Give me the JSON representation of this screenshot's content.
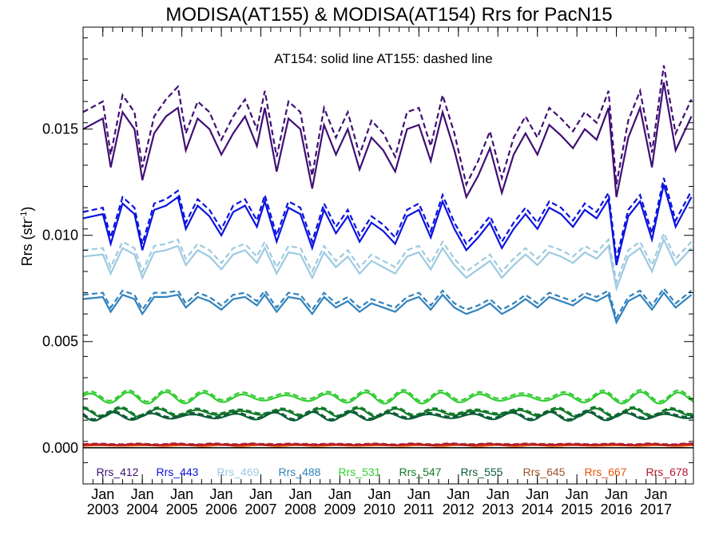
{
  "chart_data": {
    "type": "line",
    "title": "MODISA(AT155) & MODISA(AT154)  Rrs for PacN15",
    "ylabel": "Rrs (str",
    "ylabel_sup": "-1",
    "ylabel_close": ")",
    "note": "AT154: solid line   AT155: dashed line",
    "ylim": [
      -0.0017,
      0.0198
    ],
    "xlim": [
      2002.5,
      2017.95
    ],
    "y_ticks": [
      0.0,
      0.005,
      0.01,
      0.015
    ],
    "y_tick_labels": [
      "0.000",
      "0.005",
      "0.010",
      "0.015"
    ],
    "x_ticks": [
      {
        "top": "Jan",
        "bottom": "2003",
        "x": 2003.0
      },
      {
        "top": "Jan",
        "bottom": "2004",
        "x": 2004.0
      },
      {
        "top": "Jan",
        "bottom": "2005",
        "x": 2005.0
      },
      {
        "top": "Jan",
        "bottom": "2006",
        "x": 2006.0
      },
      {
        "top": "Jan",
        "bottom": "2007",
        "x": 2007.0
      },
      {
        "top": "Jan",
        "bottom": "2008",
        "x": 2008.0
      },
      {
        "top": "Jan",
        "bottom": "2009",
        "x": 2009.0
      },
      {
        "top": "Jan",
        "bottom": "2010",
        "x": 2010.0
      },
      {
        "top": "Jan",
        "bottom": "2011",
        "x": 2011.0
      },
      {
        "top": "Jan",
        "bottom": "2012",
        "x": 2012.0
      },
      {
        "top": "Jan",
        "bottom": "2013",
        "x": 2013.0
      },
      {
        "top": "Jan",
        "bottom": "2014",
        "x": 2014.0
      },
      {
        "top": "Jan",
        "bottom": "2015",
        "x": 2015.0
      },
      {
        "top": "Jan",
        "bottom": "2016",
        "x": 2016.0
      },
      {
        "top": "Jan",
        "bottom": "2017",
        "x": 2017.0
      }
    ],
    "series": [
      {
        "name": "Rrs_412",
        "color": "#3f0f74",
        "x": [
          2002.5,
          2003.0,
          2003.2,
          2003.5,
          2003.8,
          2004.0,
          2004.3,
          2004.6,
          2004.9,
          2005.1,
          2005.4,
          2005.7,
          2006.0,
          2006.3,
          2006.6,
          2006.9,
          2007.1,
          2007.4,
          2007.7,
          2008.0,
          2008.3,
          2008.6,
          2008.9,
          2009.2,
          2009.5,
          2009.8,
          2010.1,
          2010.4,
          2010.7,
          2011.0,
          2011.3,
          2011.6,
          2011.9,
          2012.2,
          2012.5,
          2012.8,
          2013.1,
          2013.4,
          2013.7,
          2014.0,
          2014.3,
          2014.6,
          2014.9,
          2015.2,
          2015.5,
          2015.8,
          2016.0,
          2016.3,
          2016.6,
          2016.9,
          2017.2,
          2017.5,
          2017.9
        ],
        "solid": [
          0.015,
          0.0155,
          0.0132,
          0.0158,
          0.015,
          0.0126,
          0.0148,
          0.0156,
          0.016,
          0.014,
          0.0155,
          0.015,
          0.0138,
          0.0148,
          0.0156,
          0.0142,
          0.016,
          0.013,
          0.0155,
          0.015,
          0.0122,
          0.0152,
          0.0138,
          0.015,
          0.0131,
          0.0146,
          0.014,
          0.013,
          0.015,
          0.0152,
          0.0135,
          0.0158,
          0.014,
          0.0118,
          0.0128,
          0.0141,
          0.012,
          0.0138,
          0.0148,
          0.0138,
          0.0152,
          0.0147,
          0.0141,
          0.015,
          0.0145,
          0.016,
          0.0118,
          0.0146,
          0.016,
          0.0132,
          0.0172,
          0.014,
          0.0156
        ],
        "dashed": [
          0.0158,
          0.0163,
          0.0138,
          0.0166,
          0.0158,
          0.0132,
          0.0156,
          0.0164,
          0.017,
          0.0148,
          0.0163,
          0.0158,
          0.0145,
          0.0156,
          0.0164,
          0.015,
          0.0168,
          0.0137,
          0.0163,
          0.0158,
          0.0128,
          0.016,
          0.0146,
          0.0158,
          0.0138,
          0.0154,
          0.0148,
          0.0137,
          0.0158,
          0.016,
          0.0142,
          0.0166,
          0.0148,
          0.0124,
          0.0135,
          0.0149,
          0.0127,
          0.0146,
          0.0156,
          0.0146,
          0.016,
          0.0155,
          0.0149,
          0.0158,
          0.0153,
          0.0168,
          0.0124,
          0.0154,
          0.0168,
          0.0139,
          0.018,
          0.0148,
          0.0164
        ]
      },
      {
        "name": "Rrs_443",
        "color": "#0b12e0",
        "x": [
          2002.5,
          2003.0,
          2003.2,
          2003.5,
          2003.8,
          2004.0,
          2004.3,
          2004.6,
          2004.9,
          2005.1,
          2005.4,
          2005.7,
          2006.0,
          2006.3,
          2006.6,
          2006.9,
          2007.1,
          2007.4,
          2007.7,
          2008.0,
          2008.3,
          2008.6,
          2008.9,
          2009.2,
          2009.5,
          2009.8,
          2010.1,
          2010.4,
          2010.7,
          2011.0,
          2011.3,
          2011.6,
          2011.9,
          2012.2,
          2012.5,
          2012.8,
          2013.1,
          2013.4,
          2013.7,
          2014.0,
          2014.3,
          2014.6,
          2014.9,
          2015.2,
          2015.5,
          2015.8,
          2016.0,
          2016.3,
          2016.6,
          2016.9,
          2017.2,
          2017.5,
          2017.9
        ],
        "solid": [
          0.0108,
          0.011,
          0.0096,
          0.0115,
          0.011,
          0.0093,
          0.0112,
          0.0114,
          0.0118,
          0.0103,
          0.0114,
          0.0109,
          0.01,
          0.0111,
          0.0114,
          0.0104,
          0.0116,
          0.0097,
          0.0113,
          0.011,
          0.0094,
          0.0112,
          0.0101,
          0.0109,
          0.0097,
          0.0106,
          0.0102,
          0.0096,
          0.0109,
          0.0112,
          0.0099,
          0.0116,
          0.0103,
          0.0093,
          0.0099,
          0.0106,
          0.0094,
          0.0103,
          0.011,
          0.0103,
          0.0113,
          0.011,
          0.0104,
          0.0112,
          0.0108,
          0.0117,
          0.0086,
          0.0109,
          0.0116,
          0.0098,
          0.0124,
          0.0104,
          0.0118
        ],
        "dashed": [
          0.0111,
          0.0113,
          0.0099,
          0.0118,
          0.0113,
          0.0096,
          0.0115,
          0.0117,
          0.0121,
          0.0106,
          0.0117,
          0.0112,
          0.0103,
          0.0114,
          0.0117,
          0.0107,
          0.0119,
          0.01,
          0.0116,
          0.0113,
          0.0097,
          0.0115,
          0.0104,
          0.0112,
          0.01,
          0.0109,
          0.0105,
          0.0099,
          0.0112,
          0.0115,
          0.0102,
          0.0119,
          0.0106,
          0.0096,
          0.0102,
          0.0109,
          0.0097,
          0.0106,
          0.0113,
          0.0106,
          0.0116,
          0.0113,
          0.0107,
          0.0115,
          0.0111,
          0.012,
          0.0089,
          0.0112,
          0.0119,
          0.0101,
          0.0127,
          0.0107,
          0.0121
        ]
      },
      {
        "name": "Rrs_469",
        "color": "#9ecae1",
        "x": [
          2002.5,
          2003.0,
          2003.2,
          2003.5,
          2003.8,
          2004.0,
          2004.3,
          2004.6,
          2004.9,
          2005.1,
          2005.4,
          2005.7,
          2006.0,
          2006.3,
          2006.6,
          2006.9,
          2007.1,
          2007.4,
          2007.7,
          2008.0,
          2008.3,
          2008.6,
          2008.9,
          2009.2,
          2009.5,
          2009.8,
          2010.1,
          2010.4,
          2010.7,
          2011.0,
          2011.3,
          2011.6,
          2011.9,
          2012.2,
          2012.5,
          2012.8,
          2013.1,
          2013.4,
          2013.7,
          2014.0,
          2014.3,
          2014.6,
          2014.9,
          2015.2,
          2015.5,
          2015.8,
          2016.0,
          2016.3,
          2016.6,
          2016.9,
          2017.2,
          2017.5,
          2017.9
        ],
        "solid": [
          0.009,
          0.0091,
          0.0082,
          0.0094,
          0.0091,
          0.008,
          0.0092,
          0.0093,
          0.0095,
          0.0086,
          0.0093,
          0.009,
          0.0084,
          0.0091,
          0.0093,
          0.0087,
          0.0094,
          0.0082,
          0.0092,
          0.0091,
          0.008,
          0.0092,
          0.0085,
          0.009,
          0.0082,
          0.0088,
          0.0085,
          0.0082,
          0.009,
          0.0092,
          0.0084,
          0.0094,
          0.0086,
          0.008,
          0.0084,
          0.0088,
          0.008,
          0.0086,
          0.0091,
          0.0086,
          0.0092,
          0.009,
          0.0087,
          0.0092,
          0.0089,
          0.0095,
          0.0075,
          0.009,
          0.0094,
          0.0083,
          0.0098,
          0.0086,
          0.0094
        ],
        "dashed": [
          0.0093,
          0.0094,
          0.0085,
          0.0097,
          0.0094,
          0.0083,
          0.0095,
          0.0096,
          0.0098,
          0.0089,
          0.0096,
          0.0093,
          0.0087,
          0.0094,
          0.0096,
          0.009,
          0.0097,
          0.0085,
          0.0095,
          0.0094,
          0.0083,
          0.0095,
          0.0088,
          0.0093,
          0.0085,
          0.0091,
          0.0088,
          0.0085,
          0.0093,
          0.0095,
          0.0087,
          0.0097,
          0.0089,
          0.0083,
          0.0087,
          0.0091,
          0.0083,
          0.0089,
          0.0094,
          0.0089,
          0.0095,
          0.0093,
          0.009,
          0.0095,
          0.0092,
          0.0098,
          0.0078,
          0.0093,
          0.0097,
          0.0086,
          0.0101,
          0.0089,
          0.0097
        ]
      },
      {
        "name": "Rrs_488",
        "color": "#3182bd",
        "x": [
          2002.5,
          2003.0,
          2003.2,
          2003.5,
          2003.8,
          2004.0,
          2004.3,
          2004.6,
          2004.9,
          2005.1,
          2005.4,
          2005.7,
          2006.0,
          2006.3,
          2006.6,
          2006.9,
          2007.1,
          2007.4,
          2007.7,
          2008.0,
          2008.3,
          2008.6,
          2008.9,
          2009.2,
          2009.5,
          2009.8,
          2010.1,
          2010.4,
          2010.7,
          2011.0,
          2011.3,
          2011.6,
          2011.9,
          2012.2,
          2012.5,
          2012.8,
          2013.1,
          2013.4,
          2013.7,
          2014.0,
          2014.3,
          2014.6,
          2014.9,
          2015.2,
          2015.5,
          2015.8,
          2016.0,
          2016.3,
          2016.6,
          2016.9,
          2017.2,
          2017.5,
          2017.9
        ],
        "solid": [
          0.007,
          0.0071,
          0.0064,
          0.0072,
          0.007,
          0.0063,
          0.0071,
          0.0071,
          0.0072,
          0.0066,
          0.0071,
          0.0069,
          0.0065,
          0.007,
          0.0071,
          0.0067,
          0.0072,
          0.0064,
          0.0071,
          0.007,
          0.0063,
          0.0071,
          0.0066,
          0.0069,
          0.0064,
          0.0068,
          0.0066,
          0.0064,
          0.0069,
          0.0071,
          0.0065,
          0.0072,
          0.0066,
          0.0063,
          0.0065,
          0.0068,
          0.0063,
          0.0066,
          0.007,
          0.0066,
          0.0071,
          0.0069,
          0.0067,
          0.0071,
          0.0069,
          0.0072,
          0.0059,
          0.0069,
          0.0072,
          0.0065,
          0.0073,
          0.0066,
          0.0072
        ],
        "dashed": [
          0.0072,
          0.0073,
          0.0066,
          0.0074,
          0.0072,
          0.0065,
          0.0073,
          0.0073,
          0.0074,
          0.0068,
          0.0073,
          0.0071,
          0.0067,
          0.0072,
          0.0073,
          0.0069,
          0.0074,
          0.0066,
          0.0073,
          0.0072,
          0.0065,
          0.0073,
          0.0068,
          0.0071,
          0.0066,
          0.007,
          0.0068,
          0.0066,
          0.0071,
          0.0073,
          0.0067,
          0.0074,
          0.0068,
          0.0065,
          0.0067,
          0.007,
          0.0065,
          0.0068,
          0.0072,
          0.0068,
          0.0073,
          0.0071,
          0.0069,
          0.0073,
          0.0071,
          0.0074,
          0.0061,
          0.0071,
          0.0074,
          0.0067,
          0.0075,
          0.0068,
          0.0074
        ]
      },
      {
        "name": "Rrs_531",
        "color": "#32cd32",
        "flat": {
          "solid": 0.00235,
          "dashed": 0.00245,
          "amp": 0.0002
        }
      },
      {
        "name": "Rrs_547",
        "color": "#137a2a",
        "flat": {
          "solid": 0.00165,
          "dashed": 0.00172,
          "amp": 0.00015
        }
      },
      {
        "name": "Rrs_555",
        "color": "#0d5e36",
        "flat": {
          "solid": 0.00148,
          "dashed": 0.00155,
          "amp": 0.00015
        }
      },
      {
        "name": "Rrs_645",
        "color": "#a0522d",
        "flat": {
          "solid": 0.00013,
          "dashed": 0.00016,
          "amp": 2e-05
        }
      },
      {
        "name": "Rrs_667",
        "color": "#e6550d",
        "flat": {
          "solid": 0.0001,
          "dashed": 0.00013,
          "amp": 2e-05
        }
      },
      {
        "name": "Rrs_678",
        "color": "#b2182b",
        "flat": {
          "solid": 0.00015,
          "dashed": 0.00018,
          "amp": 2e-05
        }
      }
    ]
  }
}
